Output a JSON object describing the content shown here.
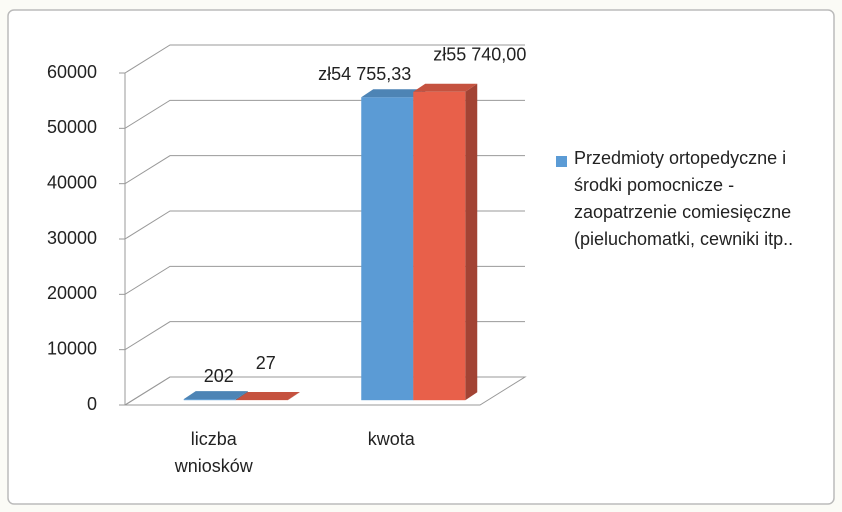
{
  "chart_data": {
    "type": "bar3d",
    "categories": [
      "liczba wniosków",
      "kwota"
    ],
    "series": [
      {
        "name": "Przedmioty ortopedyczne i środki pomocnicze - zaopatrzenie comiesięczne (pieluchomatki, cewniki itp..",
        "color": "#5b9bd5",
        "values": [
          202,
          54755.33
        ],
        "value_labels": [
          "202",
          "zł54 755,33"
        ]
      },
      {
        "color": "#e8604a",
        "values": [
          27,
          55740
        ],
        "value_labels": [
          "27",
          "zł55 740,00"
        ]
      }
    ],
    "ylim": [
      0,
      60000
    ],
    "yticks": [
      0,
      10000,
      20000,
      30000,
      40000,
      50000,
      60000
    ],
    "grid": true,
    "legend": "right"
  }
}
